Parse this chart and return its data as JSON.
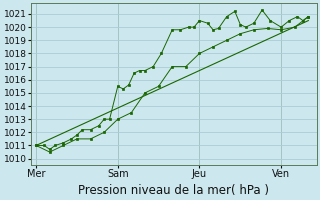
{
  "background_color": "#cce8ee",
  "grid_color": "#aaccd4",
  "line_color": "#1a6600",
  "marker_color": "#1a6600",
  "title": "Pression niveau de la mer( hPa )",
  "ylim": [
    1009.5,
    1021.8
  ],
  "yticks": [
    1010,
    1011,
    1012,
    1013,
    1014,
    1015,
    1016,
    1017,
    1018,
    1019,
    1020,
    1021
  ],
  "day_labels": [
    "Mer",
    "Sam",
    "Jeu",
    "Ven"
  ],
  "day_positions": [
    0,
    3,
    6,
    9
  ],
  "xlim": [
    -0.2,
    10.3
  ],
  "line1_x": [
    0,
    0.3,
    0.5,
    0.7,
    1.0,
    1.3,
    1.5,
    1.7,
    2.0,
    2.3,
    2.5,
    2.7,
    3.0,
    3.2,
    3.4,
    3.6,
    3.8,
    4.0,
    4.3,
    4.6,
    5.0,
    5.3,
    5.6,
    5.8,
    6.0,
    6.3,
    6.5,
    6.7,
    7.0,
    7.3,
    7.5,
    7.7,
    8.0,
    8.3,
    8.6,
    9.0,
    9.3,
    9.6,
    9.8,
    10.0
  ],
  "line1_y": [
    1011.0,
    1011.0,
    1010.7,
    1011.0,
    1011.2,
    1011.5,
    1011.8,
    1012.2,
    1012.2,
    1012.5,
    1013.0,
    1013.0,
    1015.5,
    1015.3,
    1015.6,
    1016.5,
    1016.7,
    1016.7,
    1017.0,
    1018.0,
    1019.8,
    1019.8,
    1020.0,
    1020.0,
    1020.5,
    1020.3,
    1019.8,
    1019.9,
    1020.8,
    1021.2,
    1020.2,
    1020.0,
    1020.3,
    1021.3,
    1020.5,
    1020.0,
    1020.5,
    1020.8,
    1020.5,
    1020.8
  ],
  "line2_x": [
    0,
    0.5,
    1.0,
    1.5,
    2.0,
    2.5,
    3.0,
    3.5,
    4.0,
    4.5,
    5.0,
    5.5,
    6.0,
    6.5,
    7.0,
    7.5,
    8.0,
    8.5,
    9.0,
    9.5,
    10.0
  ],
  "line2_y": [
    1011.0,
    1010.5,
    1011.0,
    1011.5,
    1011.5,
    1012.0,
    1013.0,
    1013.5,
    1015.0,
    1015.5,
    1017.0,
    1017.0,
    1018.0,
    1018.5,
    1019.0,
    1019.5,
    1019.8,
    1019.9,
    1019.8,
    1020.0,
    1020.8
  ],
  "trend_x": [
    0,
    10.0
  ],
  "trend_y": [
    1011.0,
    1020.5
  ],
  "vline_positions": [
    0,
    3,
    6,
    9
  ]
}
